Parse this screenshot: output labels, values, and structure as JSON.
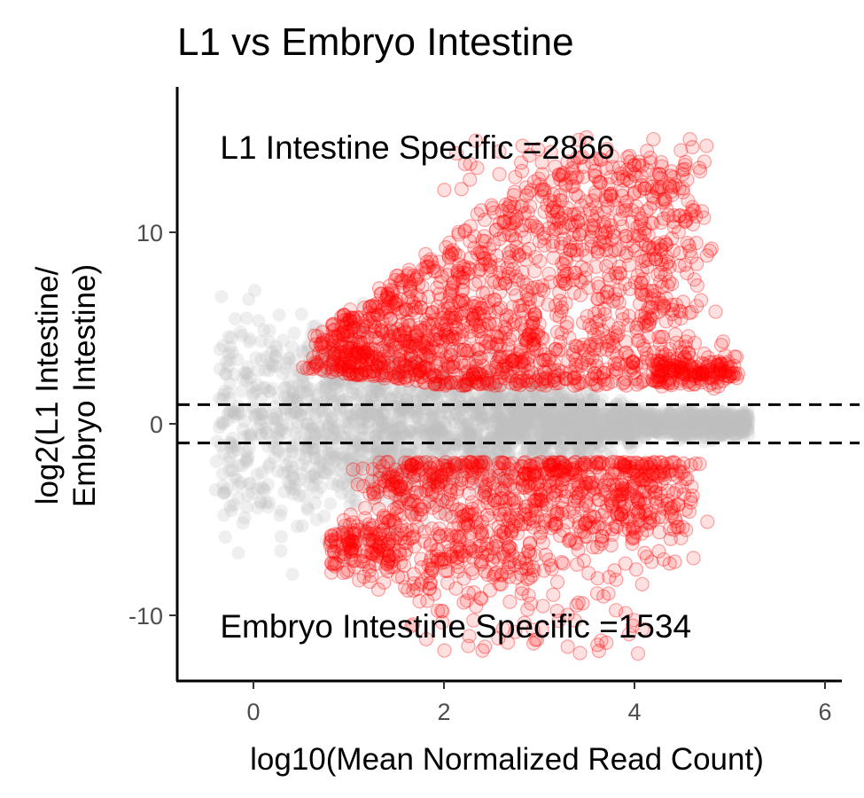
{
  "chart_data": {
    "type": "scatter",
    "title": "L1 vs Embryo Intestine",
    "xlabel": "log10(Mean Normalized Read Count)",
    "ylabel_lines": [
      "log2(L1 Intestine/",
      "Embryo Intestine)"
    ],
    "xlim": [
      -0.8,
      6.2
    ],
    "ylim": [
      -13.5,
      17.5
    ],
    "xticks": [
      0,
      2,
      4,
      6
    ],
    "yticks": [
      10,
      0,
      -10
    ],
    "threshold_lines": [
      1,
      -1
    ],
    "annotations": [
      {
        "text": "L1 Intestine Specific =2866",
        "x": -0.35,
        "y": 14.5
      },
      {
        "text": "Embryo Intestine Specific =1534",
        "x": -0.35,
        "y": -10.5
      }
    ],
    "series": [
      {
        "role": "not_significant",
        "color": "#bebebe",
        "opacity": 0.25
      },
      {
        "role": "significant",
        "color": "#ff0000",
        "opacity": 0.12
      },
      {
        "role": "l1_intestine_specific",
        "count": 2866
      },
      {
        "role": "embryo_intestine_specific",
        "count": 1534
      }
    ],
    "grid": false
  }
}
